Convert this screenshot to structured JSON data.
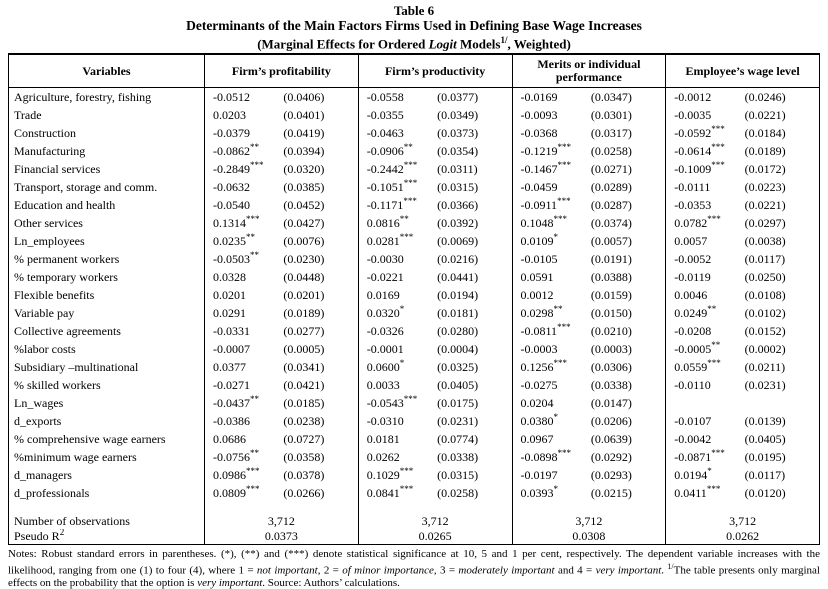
{
  "title": {
    "label": "Table 6",
    "line1": "Determinants of the Main Factors Firms Used in Defining Base Wage Increases",
    "line2_segments": [
      {
        "text": "(Marginal Effects for Ordered "
      },
      {
        "text": "Logit",
        "italic": true
      },
      {
        "text": " Models"
      },
      {
        "text": "1/",
        "sup": true
      },
      {
        "text": ", Weighted)"
      }
    ]
  },
  "table": {
    "variables_header": "Variables",
    "group_headers": [
      "Firm’s profitability",
      "Firm’s productivity",
      "Merits or individual performance",
      "Employee’s wage level"
    ],
    "rows": [
      {
        "label": "Agriculture, forestry, fishing",
        "cells": [
          {
            "coef": "-0.0512",
            "stars": "",
            "se": "(0.0406)"
          },
          {
            "coef": "-0.0558",
            "stars": "",
            "se": "(0.0377)"
          },
          {
            "coef": "-0.0169",
            "stars": "",
            "se": "(0.0347)"
          },
          {
            "coef": "-0.0012",
            "stars": "",
            "se": "(0.0246)"
          }
        ]
      },
      {
        "label": "Trade",
        "cells": [
          {
            "coef": "0.0203",
            "stars": "",
            "se": "(0.0401)"
          },
          {
            "coef": "-0.0355",
            "stars": "",
            "se": "(0.0349)"
          },
          {
            "coef": "-0.0093",
            "stars": "",
            "se": "(0.0301)"
          },
          {
            "coef": "-0.0035",
            "stars": "",
            "se": "(0.0221)"
          }
        ]
      },
      {
        "label": "Construction",
        "cells": [
          {
            "coef": "-0.0379",
            "stars": "",
            "se": "(0.0419)"
          },
          {
            "coef": "-0.0463",
            "stars": "",
            "se": "(0.0373)"
          },
          {
            "coef": "-0.0368",
            "stars": "",
            "se": "(0.0317)"
          },
          {
            "coef": "-0.0592",
            "stars": "***",
            "se": "(0.0184)"
          }
        ]
      },
      {
        "label": "Manufacturing",
        "cells": [
          {
            "coef": "-0.0862",
            "stars": "**",
            "se": "(0.0394)"
          },
          {
            "coef": "-0.0906",
            "stars": "**",
            "se": "(0.0354)"
          },
          {
            "coef": "-0.1219",
            "stars": "***",
            "se": "(0.0258)"
          },
          {
            "coef": "-0.0614",
            "stars": "***",
            "se": "(0.0189)"
          }
        ]
      },
      {
        "label": "Financial services",
        "cells": [
          {
            "coef": "-0.2849",
            "stars": "***",
            "se": "(0.0320)"
          },
          {
            "coef": "-0.2442",
            "stars": "***",
            "se": "(0.0311)"
          },
          {
            "coef": "-0.1467",
            "stars": "***",
            "se": "(0.0271)"
          },
          {
            "coef": "-0.1009",
            "stars": "***",
            "se": "(0.0172)"
          }
        ]
      },
      {
        "label": "Transport, storage and comm.",
        "cells": [
          {
            "coef": "-0.0632",
            "stars": "",
            "se": "(0.0385)"
          },
          {
            "coef": "-0.1051",
            "stars": "***",
            "se": "(0.0315)"
          },
          {
            "coef": "-0.0459",
            "stars": "",
            "se": "(0.0289)"
          },
          {
            "coef": "-0.0111",
            "stars": "",
            "se": "(0.0223)"
          }
        ]
      },
      {
        "label": "Education and health",
        "cells": [
          {
            "coef": "-0.0540",
            "stars": "",
            "se": "(0.0452)"
          },
          {
            "coef": "-0.1171",
            "stars": "***",
            "se": "(0.0366)"
          },
          {
            "coef": "-0.0911",
            "stars": "***",
            "se": "(0.0287)"
          },
          {
            "coef": "-0.0353",
            "stars": "",
            "se": "(0.0221)"
          }
        ]
      },
      {
        "label": "Other services",
        "cells": [
          {
            "coef": "0.1314",
            "stars": "***",
            "se": "(0.0427)"
          },
          {
            "coef": "0.0816",
            "stars": "**",
            "se": "(0.0392)"
          },
          {
            "coef": "0.1048",
            "stars": "***",
            "se": "(0.0374)"
          },
          {
            "coef": "0.0782",
            "stars": "***",
            "se": "(0.0297)"
          }
        ]
      },
      {
        "label": "Ln_employees",
        "cells": [
          {
            "coef": "0.0235",
            "stars": "**",
            "se": "(0.0076)"
          },
          {
            "coef": "0.0281",
            "stars": "***",
            "se": "(0.0069)"
          },
          {
            "coef": "0.0109",
            "stars": "*",
            "se": "(0.0057)"
          },
          {
            "coef": "0.0057",
            "stars": "",
            "se": "(0.0038)"
          }
        ]
      },
      {
        "label": "% permanent workers",
        "cells": [
          {
            "coef": "-0.0503",
            "stars": "**",
            "se": "(0.0230)"
          },
          {
            "coef": "-0.0030",
            "stars": "",
            "se": "(0.0216)"
          },
          {
            "coef": "-0.0105",
            "stars": "",
            "se": "(0.0191)"
          },
          {
            "coef": "-0.0052",
            "stars": "",
            "se": "(0.0117)"
          }
        ]
      },
      {
        "label": "% temporary workers",
        "cells": [
          {
            "coef": "0.0328",
            "stars": "",
            "se": "(0.0448)"
          },
          {
            "coef": "-0.0221",
            "stars": "",
            "se": "(0.0441)"
          },
          {
            "coef": "0.0591",
            "stars": "",
            "se": "(0.0388)"
          },
          {
            "coef": "-0.0119",
            "stars": "",
            "se": "(0.0250)"
          }
        ]
      },
      {
        "label": "Flexible benefits",
        "cells": [
          {
            "coef": "0.0201",
            "stars": "",
            "se": "(0.0201)"
          },
          {
            "coef": "0.0169",
            "stars": "",
            "se": "(0.0194)"
          },
          {
            "coef": "0.0012",
            "stars": "",
            "se": "(0.0159)"
          },
          {
            "coef": "0.0046",
            "stars": "",
            "se": "(0.0108)"
          }
        ]
      },
      {
        "label": "Variable pay",
        "cells": [
          {
            "coef": "0.0291",
            "stars": "",
            "se": "(0.0189)"
          },
          {
            "coef": "0.0320",
            "stars": "*",
            "se": "(0.0181)"
          },
          {
            "coef": "0.0298",
            "stars": "**",
            "se": "(0.0150)"
          },
          {
            "coef": "0.0249",
            "stars": "**",
            "se": "(0.0102)"
          }
        ]
      },
      {
        "label": "Collective agreements",
        "cells": [
          {
            "coef": "-0.0331",
            "stars": "",
            "se": "(0.0277)"
          },
          {
            "coef": "-0.0326",
            "stars": "",
            "se": "(0.0280)"
          },
          {
            "coef": "-0.0811",
            "stars": "***",
            "se": "(0.0210)"
          },
          {
            "coef": "-0.0208",
            "stars": "",
            "se": "(0.0152)"
          }
        ]
      },
      {
        "label": "%labor costs",
        "cells": [
          {
            "coef": "-0.0007",
            "stars": "",
            "se": "(0.0005)"
          },
          {
            "coef": "-0.0001",
            "stars": "",
            "se": "(0.0004)"
          },
          {
            "coef": "-0.0003",
            "stars": "",
            "se": "(0.0003)"
          },
          {
            "coef": "-0.0005",
            "stars": "**",
            "se": "(0.0002)"
          }
        ]
      },
      {
        "label": "Subsidiary –multinational",
        "cells": [
          {
            "coef": "0.0377",
            "stars": "",
            "se": "(0.0341)"
          },
          {
            "coef": "0.0600",
            "stars": "*",
            "se": "(0.0325)"
          },
          {
            "coef": "0.1256",
            "stars": "***",
            "se": "(0.0306)"
          },
          {
            "coef": "0.0559",
            "stars": "***",
            "se": "(0.0211)"
          }
        ]
      },
      {
        "label": "% skilled workers",
        "cells": [
          {
            "coef": "-0.0271",
            "stars": "",
            "se": "(0.0421)"
          },
          {
            "coef": "0.0033",
            "stars": "",
            "se": "(0.0405)"
          },
          {
            "coef": "-0.0275",
            "stars": "",
            "se": "(0.0338)"
          },
          {
            "coef": "-0.0110",
            "stars": "",
            "se": "(0.0231)"
          }
        ]
      },
      {
        "label": "Ln_wages",
        "cells": [
          {
            "coef": "-0.0437",
            "stars": "**",
            "se": "(0.0185)"
          },
          {
            "coef": "-0.0543",
            "stars": "***",
            "se": "(0.0175)"
          },
          {
            "coef": "0.0204",
            "stars": "",
            "se": "(0.0147)"
          },
          {
            "coef": "",
            "stars": "",
            "se": ""
          }
        ]
      },
      {
        "label": "d_exports",
        "cells": [
          {
            "coef": "-0.0386",
            "stars": "",
            "se": "(0.0238)"
          },
          {
            "coef": "-0.0310",
            "stars": "",
            "se": "(0.0231)"
          },
          {
            "coef": "0.0380",
            "stars": "*",
            "se": "(0.0206)"
          },
          {
            "coef": "-0.0107",
            "stars": "",
            "se": "(0.0139)"
          }
        ]
      },
      {
        "label": "% comprehensive wage earners",
        "cells": [
          {
            "coef": "0.0686",
            "stars": "",
            "se": "(0.0727)"
          },
          {
            "coef": "0.0181",
            "stars": "",
            "se": "(0.0774)"
          },
          {
            "coef": "0.0967",
            "stars": "",
            "se": "(0.0639)"
          },
          {
            "coef": "-0.0042",
            "stars": "",
            "se": "(0.0405)"
          }
        ]
      },
      {
        "label": "%minimum wage earners",
        "cells": [
          {
            "coef": "-0.0756",
            "stars": "**",
            "se": "(0.0358)"
          },
          {
            "coef": "0.0262",
            "stars": "",
            "se": "(0.0338)"
          },
          {
            "coef": "-0.0898",
            "stars": "***",
            "se": "(0.0292)"
          },
          {
            "coef": "-0.0871",
            "stars": "***",
            "se": "(0.0195)"
          }
        ]
      },
      {
        "label": "d_managers",
        "cells": [
          {
            "coef": "0.0986",
            "stars": "***",
            "se": "(0.0378)"
          },
          {
            "coef": "0.1029",
            "stars": "***",
            "se": "(0.0315)"
          },
          {
            "coef": "-0.0197",
            "stars": "",
            "se": "(0.0293)"
          },
          {
            "coef": "0.0194",
            "stars": "*",
            "se": "(0.0117)"
          }
        ]
      },
      {
        "label": "d_professionals",
        "cells": [
          {
            "coef": "0.0809",
            "stars": "***",
            "se": "(0.0266)"
          },
          {
            "coef": "0.0841",
            "stars": "***",
            "se": "(0.0258)"
          },
          {
            "coef": "0.0393",
            "stars": "*",
            "se": "(0.0215)"
          },
          {
            "coef": "0.0411",
            "stars": "***",
            "se": "(0.0120)"
          }
        ]
      }
    ],
    "footer": {
      "obs_label": "Number of observations",
      "obs_values": [
        "3,712",
        "3,712",
        "3,712",
        "3,712"
      ],
      "pseudo_label_base": "Pseudo R",
      "pseudo_label_sup": "2",
      "pseudo_values": [
        "0.0373",
        "0.0265",
        "0.0308",
        "0.0262"
      ]
    }
  },
  "notes": {
    "segments": [
      {
        "text": "Notes: Robust standard errors in parentheses. (*), (**) and (***) denote statistical significance at 10, 5 and 1 per cent, respectively. The dependent variable increases with the likelihood, ranging from one (1) to four (4), where 1 = "
      },
      {
        "text": "not important",
        "italic": true
      },
      {
        "text": ", 2 = "
      },
      {
        "text": "of minor importance",
        "italic": true
      },
      {
        "text": ", 3 = "
      },
      {
        "text": "moderately important",
        "italic": true
      },
      {
        "text": " and 4 = "
      },
      {
        "text": "very important",
        "italic": true
      },
      {
        "text": ". "
      },
      {
        "text": "1/",
        "sup": true
      },
      {
        "text": "The table presents only marginal effects on the probability that the option is "
      },
      {
        "text": "very important",
        "italic": true
      },
      {
        "text": ". Source: Authors’ calculations."
      }
    ]
  }
}
